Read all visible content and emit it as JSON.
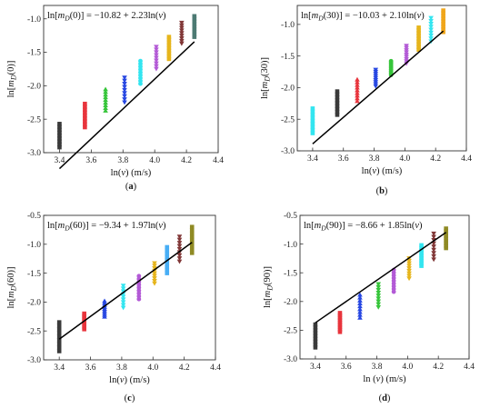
{
  "colors": [
    "#3a3a3a",
    "#e8343c",
    "#36c53a",
    "#2747e2",
    "#33e5f0",
    "#b35ad6",
    "#e6b51c",
    "#48aef5",
    "#813737",
    "#4d7a73",
    "#f0a61b",
    "#8f8a24"
  ],
  "chart_data": [
    {
      "type": "scatter",
      "panel_label": "(a)",
      "equation": "ln[mD(0)] = −10.82 + 2.23ln(v)",
      "xlabel": "ln(v) (m/s)",
      "ylabel": "ln[mD(0)]",
      "xlim": [
        3.3,
        4.4
      ],
      "ylim": [
        -3.0,
        -0.8
      ],
      "xticks": [
        "3.4",
        "3.6",
        "3.8",
        "4.0",
        "4.2",
        "4.4"
      ],
      "yticks": [
        "-3.0",
        "-2.5",
        "-2.0",
        "-1.5",
        "-1.0"
      ],
      "fit": {
        "intercept": -10.82,
        "slope": 2.23,
        "x_range": [
          3.4,
          4.25
        ]
      },
      "clusters": [
        {
          "x": 3.4,
          "y_min": -2.92,
          "y_max": -2.57
        },
        {
          "x": 3.56,
          "y_min": -2.62,
          "y_max": -2.27
        },
        {
          "x": 3.69,
          "y_min": -2.37,
          "y_max": -2.05
        },
        {
          "x": 3.81,
          "y_min": -2.25,
          "y_max": -1.88
        },
        {
          "x": 3.91,
          "y_min": -1.97,
          "y_max": -1.63
        },
        {
          "x": 4.01,
          "y_min": -1.75,
          "y_max": -1.42
        },
        {
          "x": 4.09,
          "y_min": -1.6,
          "y_max": -1.27
        },
        {
          "x": 4.17,
          "y_min": -1.37,
          "y_max": -1.06
        },
        {
          "x": 4.25,
          "y_min": -1.27,
          "y_max": -0.96
        }
      ],
      "series_colors": [
        0,
        1,
        2,
        3,
        4,
        5,
        6,
        8,
        9
      ]
    },
    {
      "type": "scatter",
      "panel_label": "(b)",
      "equation": "ln[mD(30)] = −10.03 + 2.10ln(v)",
      "xlabel": "ln(v) (m/s)",
      "ylabel": "ln[mD(30)]",
      "xlim": [
        3.3,
        4.4
      ],
      "ylim": [
        -3.0,
        -0.7
      ],
      "xticks": [
        "3.4",
        "3.6",
        "3.8",
        "4.0",
        "4.2",
        "4.4"
      ],
      "yticks": [
        "-3.0",
        "-2.5",
        "-2.0",
        "-1.5",
        "-1.0"
      ],
      "fit": {
        "intercept": -10.03,
        "slope": 2.1,
        "x_range": [
          3.4,
          4.25
        ]
      },
      "clusters": [
        {
          "x": 3.4,
          "y_min": -2.72,
          "y_max": -2.33
        },
        {
          "x": 3.56,
          "y_min": -2.43,
          "y_max": -2.06
        },
        {
          "x": 3.69,
          "y_min": -2.21,
          "y_max": -1.87
        },
        {
          "x": 3.81,
          "y_min": -1.98,
          "y_max": -1.72
        },
        {
          "x": 3.91,
          "y_min": -1.8,
          "y_max": -1.58
        },
        {
          "x": 4.01,
          "y_min": -1.62,
          "y_max": -1.34
        },
        {
          "x": 4.09,
          "y_min": -1.4,
          "y_max": -1.05
        },
        {
          "x": 4.17,
          "y_min": -1.27,
          "y_max": -0.9
        },
        {
          "x": 4.25,
          "y_min": -1.12,
          "y_max": -0.78
        }
      ],
      "series_colors": [
        4,
        0,
        1,
        3,
        2,
        5,
        6,
        4,
        10
      ]
    },
    {
      "type": "scatter",
      "panel_label": "(c)",
      "equation": "ln[mD(60)] = −9.34 + 1.97ln(v)",
      "xlabel": "ln(v) (m/s)",
      "ylabel": "ln[mD(60)]",
      "xlim": [
        3.3,
        4.4
      ],
      "ylim": [
        -3.0,
        -0.5
      ],
      "xticks": [
        "3.4",
        "3.6",
        "3.8",
        "4.0",
        "4.2",
        "4.4"
      ],
      "yticks": [
        "-3.0",
        "-2.5",
        "-2.0",
        "-1.5",
        "-1.0",
        "-0.5"
      ],
      "fit": {
        "intercept": -9.34,
        "slope": 1.97,
        "x_range": [
          3.4,
          4.25
        ]
      },
      "clusters": [
        {
          "x": 3.4,
          "y_min": -2.85,
          "y_max": -2.35
        },
        {
          "x": 3.56,
          "y_min": -2.47,
          "y_max": -2.2
        },
        {
          "x": 3.69,
          "y_min": -2.25,
          "y_max": -1.98
        },
        {
          "x": 3.81,
          "y_min": -2.1,
          "y_max": -1.72
        },
        {
          "x": 3.91,
          "y_min": -1.95,
          "y_max": -1.55
        },
        {
          "x": 4.01,
          "y_min": -1.68,
          "y_max": -1.33
        },
        {
          "x": 4.09,
          "y_min": -1.5,
          "y_max": -1.05
        },
        {
          "x": 4.17,
          "y_min": -1.3,
          "y_max": -0.87
        },
        {
          "x": 4.25,
          "y_min": -1.15,
          "y_max": -0.7
        }
      ],
      "series_colors": [
        0,
        1,
        3,
        4,
        5,
        6,
        7,
        8,
        11
      ]
    },
    {
      "type": "scatter",
      "panel_label": "(d)",
      "equation": "ln[mD(90)] = −8.66 + 1.85ln(v)",
      "xlabel": "ln (v) (m/s)",
      "ylabel": "ln[mD(90)]",
      "xlim": [
        3.3,
        4.4
      ],
      "ylim": [
        -3.0,
        -0.5
      ],
      "xticks": [
        "3.4",
        "3.6",
        "3.8",
        "4.0",
        "4.2",
        "4.4"
      ],
      "yticks": [
        "-3.0",
        "-2.5",
        "-2.0",
        "-1.5",
        "-1.0",
        "-0.5"
      ],
      "fit": {
        "intercept": -8.66,
        "slope": 1.85,
        "x_range": [
          3.4,
          4.25
        ]
      },
      "clusters": [
        {
          "x": 3.4,
          "y_min": -2.8,
          "y_max": -2.4
        },
        {
          "x": 3.56,
          "y_min": -2.53,
          "y_max": -2.2
        },
        {
          "x": 3.69,
          "y_min": -2.28,
          "y_max": -1.88
        },
        {
          "x": 3.81,
          "y_min": -2.1,
          "y_max": -1.7
        },
        {
          "x": 3.91,
          "y_min": -1.83,
          "y_max": -1.45
        },
        {
          "x": 4.01,
          "y_min": -1.6,
          "y_max": -1.25
        },
        {
          "x": 4.09,
          "y_min": -1.38,
          "y_max": -1.02
        },
        {
          "x": 4.17,
          "y_min": -1.27,
          "y_max": -0.82
        },
        {
          "x": 4.25,
          "y_min": -1.07,
          "y_max": -0.73
        }
      ],
      "series_colors": [
        0,
        1,
        3,
        2,
        5,
        6,
        4,
        8,
        11
      ]
    }
  ]
}
